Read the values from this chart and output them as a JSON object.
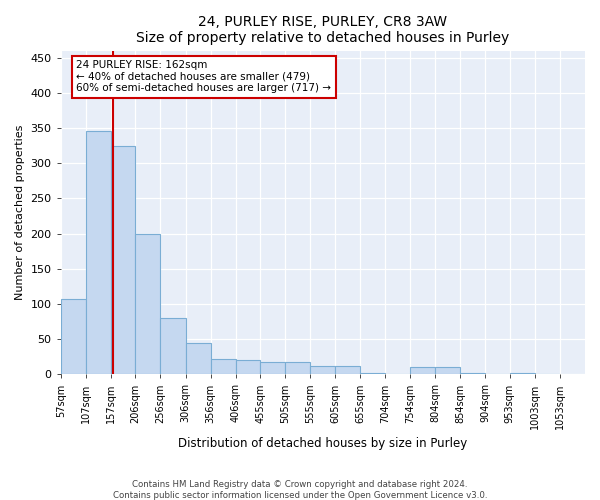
{
  "title": "24, PURLEY RISE, PURLEY, CR8 3AW",
  "subtitle": "Size of property relative to detached houses in Purley",
  "xlabel": "Distribution of detached houses by size in Purley",
  "ylabel": "Number of detached properties",
  "footer_line1": "Contains HM Land Registry data © Crown copyright and database right 2024.",
  "footer_line2": "Contains public sector information licensed under the Open Government Licence v3.0.",
  "annotation_line1": "24 PURLEY RISE: 162sqm",
  "annotation_line2": "← 40% of detached houses are smaller (479)",
  "annotation_line3": "60% of semi-detached houses are larger (717) →",
  "property_size": 162,
  "bar_color": "#c5d8f0",
  "bar_edge_color": "#7aadd4",
  "vline_color": "#cc0000",
  "background_color": "#e8eef8",
  "bar_counts": [
    107,
    345,
    325,
    200,
    80,
    45,
    22,
    20,
    18,
    17,
    12,
    12,
    2,
    0,
    10,
    10,
    2,
    0,
    2,
    0,
    2
  ],
  "all_bins_left": [
    57,
    107,
    157,
    206,
    256,
    306,
    356,
    406,
    455,
    505,
    555,
    605,
    655,
    704,
    754,
    804,
    854,
    904,
    953,
    1003,
    1053
  ],
  "bin_widths": [
    50,
    50,
    49,
    50,
    50,
    50,
    50,
    49,
    50,
    50,
    50,
    50,
    49,
    50,
    50,
    50,
    50,
    49,
    50,
    50,
    50
  ],
  "xlim_left": 57,
  "xlim_right": 1103,
  "ylim_top": 460,
  "yticks": [
    0,
    50,
    100,
    150,
    200,
    250,
    300,
    350,
    400,
    450
  ],
  "tick_labels": [
    "57sqm",
    "107sqm",
    "157sqm",
    "206sqm",
    "256sqm",
    "306sqm",
    "356sqm",
    "406sqm",
    "455sqm",
    "505sqm",
    "555sqm",
    "605sqm",
    "655sqm",
    "704sqm",
    "754sqm",
    "804sqm",
    "854sqm",
    "904sqm",
    "953sqm",
    "1003sqm",
    "1053sqm"
  ]
}
